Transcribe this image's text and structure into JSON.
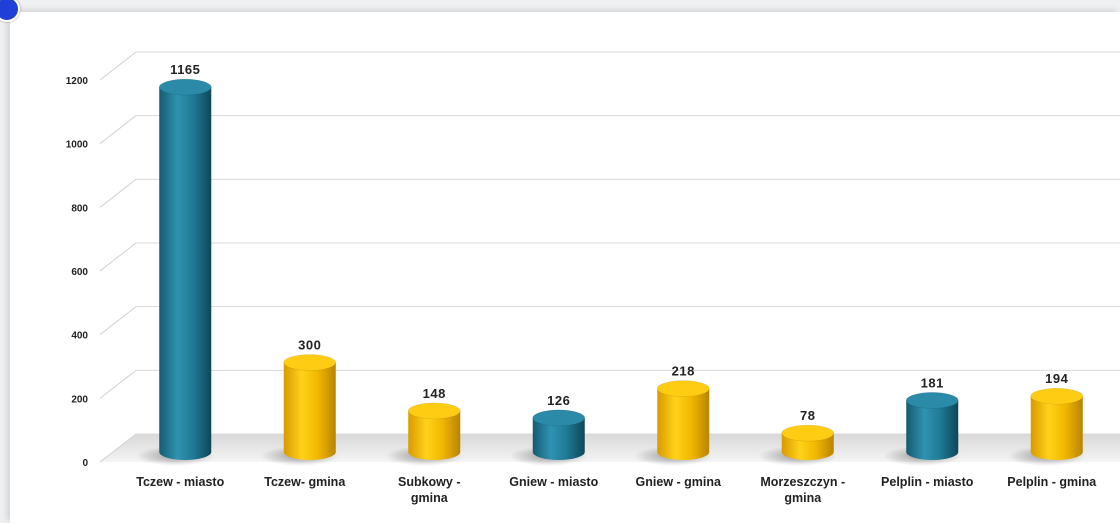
{
  "chart_data": {
    "type": "bar",
    "style": "3d-cylinder",
    "categories": [
      "Tczew - miasto",
      "Tczew- gmina",
      "Subkowy - gmina",
      "Gniew - miasto",
      "Gniew - gmina",
      "Morzeszczyn - gmina",
      "Pelplin - miasto",
      "Pelplin - gmina"
    ],
    "category_lines": [
      [
        "Tczew - miasto"
      ],
      [
        "Tczew- gmina"
      ],
      [
        "Subkowy -",
        "gmina"
      ],
      [
        "Gniew - miasto"
      ],
      [
        "Gniew - gmina"
      ],
      [
        "Morzeszczyn -",
        "gmina"
      ],
      [
        "Pelplin - miasto"
      ],
      [
        "Pelplin - gmina"
      ]
    ],
    "values": [
      1165,
      300,
      148,
      126,
      218,
      78,
      181,
      194
    ],
    "bar_colors": [
      "#1f7a96",
      "#f2b800",
      "#f2b800",
      "#1f7a96",
      "#f2b800",
      "#f2b800",
      "#1f7a96",
      "#f2b800"
    ],
    "yticks": [
      0,
      200,
      400,
      600,
      800,
      1000,
      1200
    ],
    "ylim": [
      0,
      1200
    ],
    "grid": true,
    "legend": "none",
    "title": "",
    "xlabel": "",
    "ylabel": ""
  }
}
